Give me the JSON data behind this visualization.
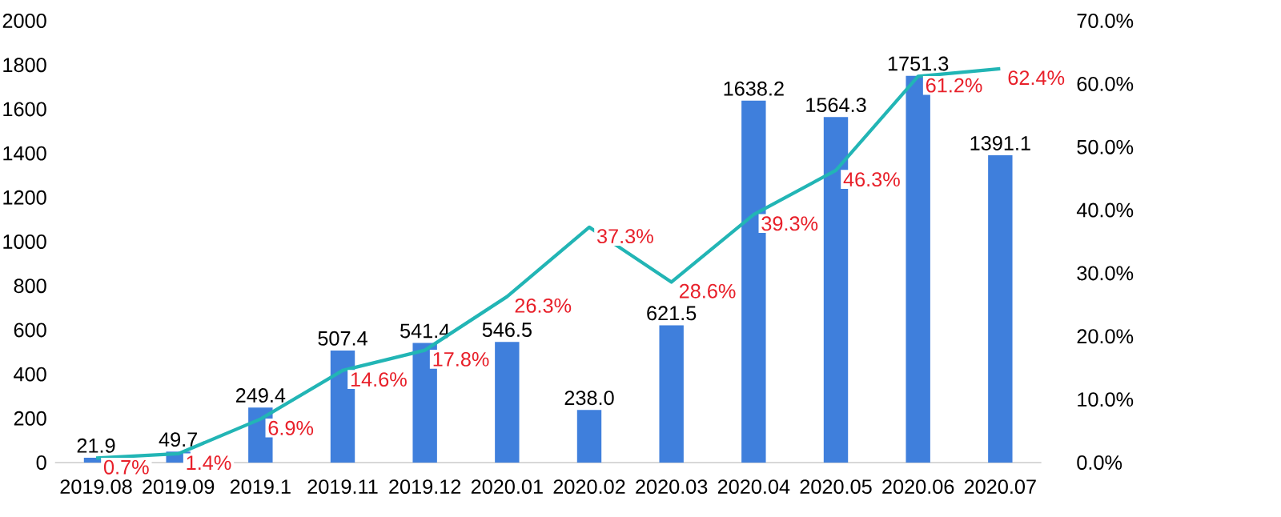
{
  "chart_data": {
    "type": "bar",
    "categories": [
      "2019.08",
      "2019.09",
      "2019.1",
      "2019.11",
      "2019.12",
      "2020.01",
      "2020.02",
      "2020.03",
      "2020.04",
      "2020.05",
      "2020.06",
      "2020.07"
    ],
    "ylim": [
      0,
      2000
    ],
    "yticks": [
      0,
      200,
      400,
      600,
      800,
      1000,
      1200,
      1400,
      1600,
      1800,
      2000
    ],
    "y2lim": [
      0,
      70
    ],
    "y2ticks": [
      {
        "value": 0,
        "label": "0.0%"
      },
      {
        "value": 10,
        "label": "10.0%"
      },
      {
        "value": 20,
        "label": "20.0%"
      },
      {
        "value": 30,
        "label": "30.0%"
      },
      {
        "value": 40,
        "label": "40.0%"
      },
      {
        "value": 50,
        "label": "50.0%"
      },
      {
        "value": 60,
        "label": "60.0%"
      },
      {
        "value": 70,
        "label": "70.0%"
      }
    ],
    "series": [
      {
        "color": "#3f7fdc",
        "values": [
          21.9,
          49.7,
          249.4,
          507.4,
          541.4,
          546.5,
          238.0,
          621.5,
          1638.2,
          1564.3,
          1751.3,
          1391.1
        ],
        "value_labels": [
          "21.9",
          "49.7",
          "249.4",
          "507.4",
          "541.4",
          "546.5",
          "238.0",
          "621.5",
          "1638.2",
          "1564.3",
          "1751.3",
          "1391.1"
        ]
      },
      {
        "type": "line",
        "axis": "y2",
        "color": "#22b5b5",
        "values": [
          0.7,
          1.4,
          6.9,
          14.6,
          17.8,
          26.3,
          37.3,
          28.6,
          39.3,
          46.3,
          61.2,
          62.4
        ],
        "value_labels": [
          "0.7%",
          "1.4%",
          "6.9%",
          "14.6%",
          "17.8%",
          "26.3%",
          "37.3%",
          "28.6%",
          "39.3%",
          "46.3%",
          "61.2%",
          "62.4%"
        ]
      }
    ]
  }
}
